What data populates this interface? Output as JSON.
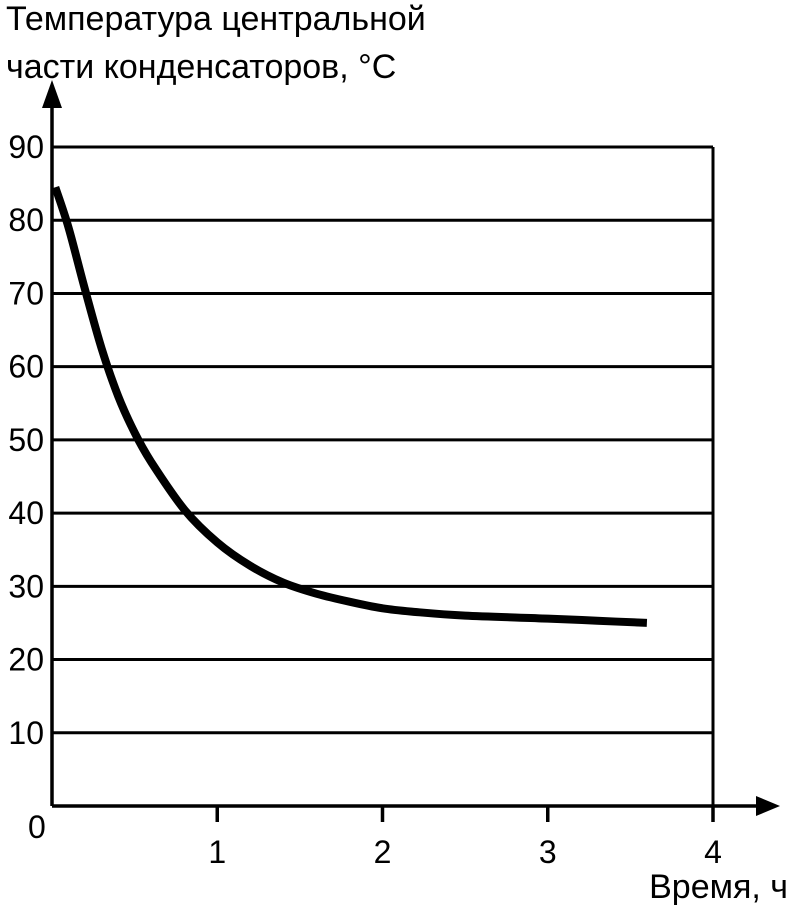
{
  "chart_data": {
    "type": "line",
    "title": "",
    "ylabel_lines": [
      "Температура центральной",
      "части конденсаторов, °C"
    ],
    "xlabel": "Время, ч",
    "origin_label": "0",
    "xlim": [
      0,
      4
    ],
    "ylim": [
      0,
      90
    ],
    "x_ticks": [
      1,
      2,
      3,
      4
    ],
    "x_tick_labels": [
      "1",
      "2",
      "3",
      "4"
    ],
    "y_ticks": [
      10,
      20,
      30,
      40,
      50,
      60,
      70,
      80,
      90
    ],
    "y_tick_labels": [
      "10",
      "20",
      "30",
      "40",
      "50",
      "60",
      "70",
      "80",
      "90"
    ],
    "grid": "horizontal",
    "series": [
      {
        "x": [
          0.02,
          0.1,
          0.2,
          0.3,
          0.4,
          0.5,
          0.6,
          0.8,
          1.0,
          1.2,
          1.4,
          1.6,
          1.8,
          2.0,
          2.2,
          2.5,
          3.0,
          3.3,
          3.6
        ],
        "y": [
          84.5,
          79,
          70.5,
          62.5,
          56,
          51,
          47,
          40.5,
          36,
          32.8,
          30.5,
          29,
          27.9,
          27,
          26.5,
          26,
          25.6,
          25.3,
          25
        ]
      }
    ]
  }
}
